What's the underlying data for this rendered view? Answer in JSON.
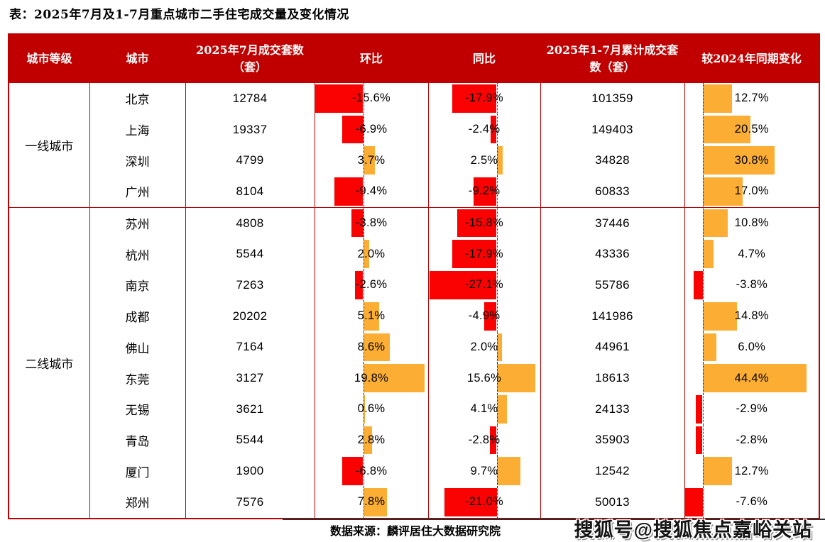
{
  "title": "表：2025年7月及1-7月重点城市二手住宅成交量及变化情况",
  "columns": [
    "城市等级",
    "城市",
    "2025年7月成交套数（套）",
    "环比",
    "同比",
    "2025年1-7月累计成交套数（套）",
    "较2024年同期变化"
  ],
  "groups": [
    {
      "tier": "一线城市",
      "rows": [
        {
          "city": "北京",
          "july": "12784",
          "mom": -15.6,
          "mom_label": "-15.6%",
          "yoy": -17.9,
          "yoy_label": "-17.9%",
          "cum": "101359",
          "chg": 12.7,
          "chg_label": "12.7%"
        },
        {
          "city": "上海",
          "july": "19337",
          "mom": -6.9,
          "mom_label": "-6.9%",
          "yoy": -2.4,
          "yoy_label": "-2.4%",
          "cum": "149403",
          "chg": 20.5,
          "chg_label": "20.5%"
        },
        {
          "city": "深圳",
          "july": "4799",
          "mom": 3.7,
          "mom_label": "3.7%",
          "yoy": 2.5,
          "yoy_label": "2.5%",
          "cum": "34828",
          "chg": 30.8,
          "chg_label": "30.8%"
        },
        {
          "city": "广州",
          "july": "8104",
          "mom": -9.4,
          "mom_label": "-9.4%",
          "yoy": -9.2,
          "yoy_label": "-9.2%",
          "cum": "60833",
          "chg": 17.0,
          "chg_label": "17.0%"
        }
      ]
    },
    {
      "tier": "二线城市",
      "rows": [
        {
          "city": "苏州",
          "july": "4808",
          "mom": -3.8,
          "mom_label": "-3.8%",
          "yoy": -15.8,
          "yoy_label": "-15.8%",
          "cum": "37446",
          "chg": 10.8,
          "chg_label": "10.8%"
        },
        {
          "city": "杭州",
          "july": "5544",
          "mom": 2.0,
          "mom_label": "2.0%",
          "yoy": -17.9,
          "yoy_label": "-17.9%",
          "cum": "43336",
          "chg": 4.7,
          "chg_label": "4.7%"
        },
        {
          "city": "南京",
          "july": "7263",
          "mom": -2.6,
          "mom_label": "-2.6%",
          "yoy": -27.1,
          "yoy_label": "-27.1%",
          "cum": "55786",
          "chg": -3.8,
          "chg_label": "-3.8%"
        },
        {
          "city": "成都",
          "july": "20202",
          "mom": 5.1,
          "mom_label": "5.1%",
          "yoy": -4.9,
          "yoy_label": "-4.9%",
          "cum": "141986",
          "chg": 14.8,
          "chg_label": "14.8%"
        },
        {
          "city": "佛山",
          "july": "7164",
          "mom": 8.6,
          "mom_label": "8.6%",
          "yoy": 2.0,
          "yoy_label": "2.0%",
          "cum": "44961",
          "chg": 6.0,
          "chg_label": "6.0%"
        },
        {
          "city": "东莞",
          "july": "3127",
          "mom": 19.8,
          "mom_label": "19.8%",
          "yoy": 15.6,
          "yoy_label": "15.6%",
          "cum": "18613",
          "chg": 44.4,
          "chg_label": "44.4%"
        },
        {
          "city": "无锡",
          "july": "3621",
          "mom": 0.6,
          "mom_label": "0.6%",
          "yoy": 4.1,
          "yoy_label": "4.1%",
          "cum": "24133",
          "chg": -2.9,
          "chg_label": "-2.9%"
        },
        {
          "city": "青岛",
          "july": "5544",
          "mom": 2.8,
          "mom_label": "2.8%",
          "yoy": -2.8,
          "yoy_label": "-2.8%",
          "cum": "35903",
          "chg": -2.8,
          "chg_label": "-2.8%"
        },
        {
          "city": "厦门",
          "july": "1900",
          "mom": -6.8,
          "mom_label": "-6.8%",
          "yoy": 9.7,
          "yoy_label": "9.7%",
          "cum": "12542",
          "chg": 12.7,
          "chg_label": "12.7%"
        },
        {
          "city": "郑州",
          "july": "7576",
          "mom": 7.8,
          "mom_label": "7.8%",
          "yoy": -21.0,
          "yoy_label": "-21.0%",
          "cum": "50013",
          "chg": -7.6,
          "chg_label": "-7.6%"
        }
      ]
    }
  ],
  "footer": {
    "source": "数据来源：麟评居住大数据研究院",
    "watermark": "搜狐号@搜狐焦点嘉峪关站"
  },
  "colors": {
    "header_bg": "#C00000",
    "border": "#C00000",
    "bar_positive": "#FBAE33",
    "bar_negative": "#FB0202",
    "zero_line": "#222222",
    "header_text": "#FFFFFF"
  },
  "chart_data": {
    "type": "table",
    "title": "表：2025年7月及1-7月重点城市二手住宅成交量及变化情况",
    "columns": [
      "城市等级",
      "城市",
      "2025年7月成交套数（套）",
      "环比",
      "同比",
      "2025年1-7月累计成交套数（套）",
      "较2024年同期变化"
    ],
    "categories": [
      "北京",
      "上海",
      "深圳",
      "广州",
      "苏州",
      "杭州",
      "南京",
      "成都",
      "佛山",
      "东莞",
      "无锡",
      "青岛",
      "厦门",
      "郑州"
    ],
    "tiers": {
      "一线城市": [
        "北京",
        "上海",
        "深圳",
        "广州"
      ],
      "二线城市": [
        "苏州",
        "杭州",
        "南京",
        "成都",
        "佛山",
        "东莞",
        "无锡",
        "青岛",
        "厦门",
        "郑州"
      ]
    },
    "series": [
      {
        "name": "2025年7月成交套数（套）",
        "values": [
          12784,
          19337,
          4799,
          8104,
          4808,
          5544,
          7263,
          20202,
          7164,
          3127,
          3621,
          5544,
          1900,
          7576
        ]
      },
      {
        "name": "环比",
        "unit": "%",
        "type": "bar",
        "values": [
          -15.6,
          -6.9,
          3.7,
          -9.4,
          -3.8,
          2.0,
          -2.6,
          5.1,
          8.6,
          19.8,
          0.6,
          2.8,
          -6.8,
          7.8
        ]
      },
      {
        "name": "同比",
        "unit": "%",
        "type": "bar",
        "values": [
          -17.9,
          -2.4,
          2.5,
          -9.2,
          -15.8,
          -17.9,
          -27.1,
          -4.9,
          2.0,
          15.6,
          4.1,
          -2.8,
          9.7,
          -21.0
        ]
      },
      {
        "name": "2025年1-7月累计成交套数（套）",
        "values": [
          101359,
          149403,
          34828,
          60833,
          37446,
          43336,
          55786,
          141986,
          44961,
          18613,
          24133,
          35903,
          12542,
          50013
        ]
      },
      {
        "name": "较2024年同期变化",
        "unit": "%",
        "type": "bar",
        "values": [
          12.7,
          20.5,
          30.8,
          17.0,
          10.8,
          4.7,
          -3.8,
          14.8,
          6.0,
          44.4,
          -2.9,
          -2.8,
          12.7,
          -7.6
        ]
      }
    ],
    "legend": "none",
    "bar_color_positive": "#FBAE33",
    "bar_color_negative": "#FB0202",
    "source_note": "数据来源：麟评居住大数据研究院"
  }
}
